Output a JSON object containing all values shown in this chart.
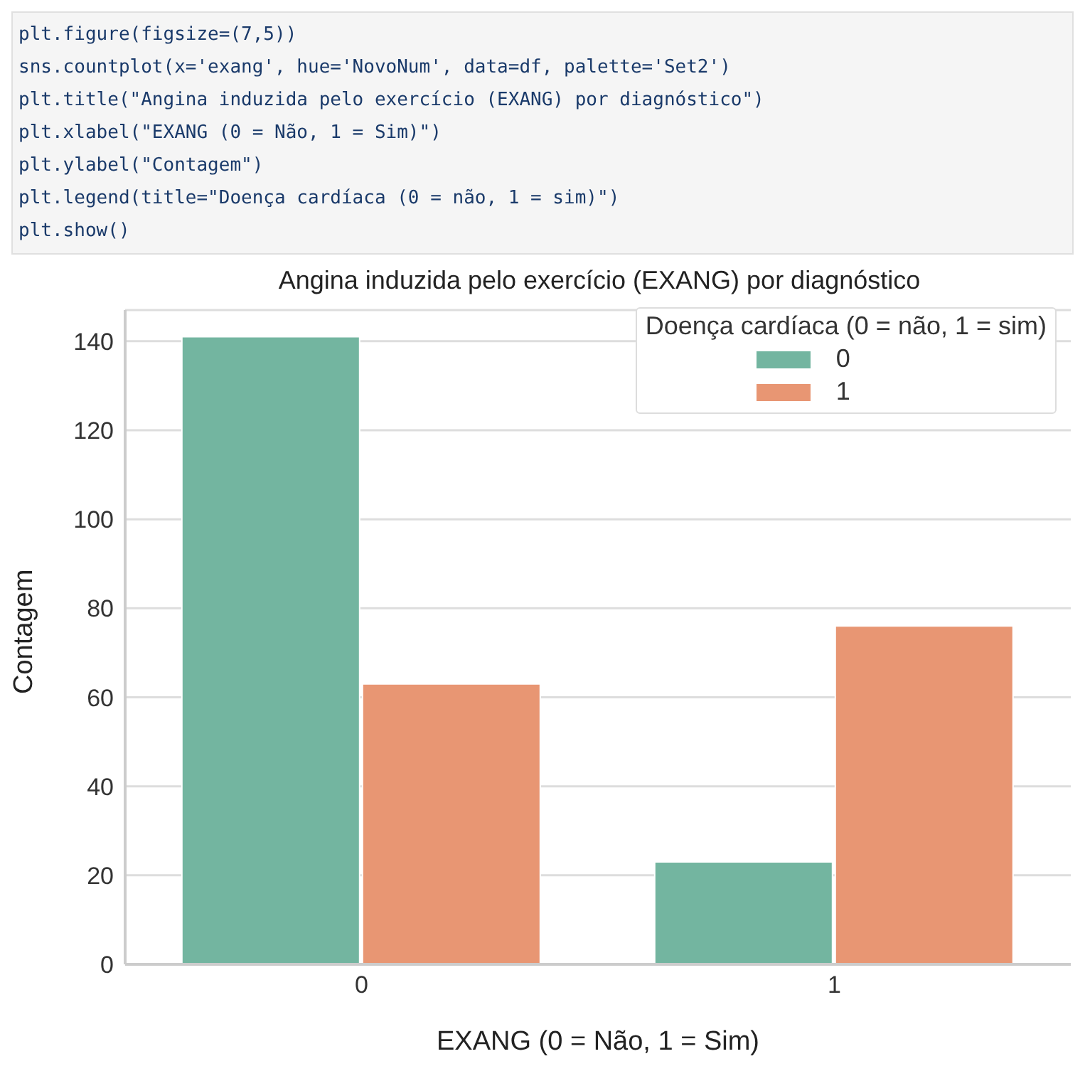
{
  "chart_data": {
    "type": "bar",
    "title": "Angina induzida pelo exercício (EXANG) por diagnóstico",
    "xlabel": "EXANG (0 = Não, 1 = Sim)",
    "ylabel": "Contagem",
    "legend_title": "Doença cardíaca (0 = não, 1 = sim)",
    "annotations": [
      "plt.figure(figsize=(7,5))",
      "sns.countplot(x='exang', hue='NovoNum', data=df, palette='Set2')",
      "plt.title(\"Angina induzida pelo exercício (EXANG) por diagnóstico\")",
      "plt.xlabel(\"EXANG (0 = Não, 1 = Sim)\")",
      "plt.ylabel(\"Contagem\")",
      "plt.legend(title=\"Doença cardíaca (0 = não, 1 = sim)\")",
      "plt.show()"
    ],
    "categories": [
      "0",
      "1"
    ],
    "series": [
      {
        "name": "0",
        "color": "#73b5a0",
        "values": [
          141,
          23
        ]
      },
      {
        "name": "1",
        "color": "#e89673",
        "values": [
          63,
          76
        ]
      }
    ],
    "ylim": [
      0,
      147
    ],
    "yticks": [
      0,
      20,
      40,
      60,
      80,
      100,
      120,
      140
    ],
    "grid": "y",
    "legend": "top right"
  }
}
